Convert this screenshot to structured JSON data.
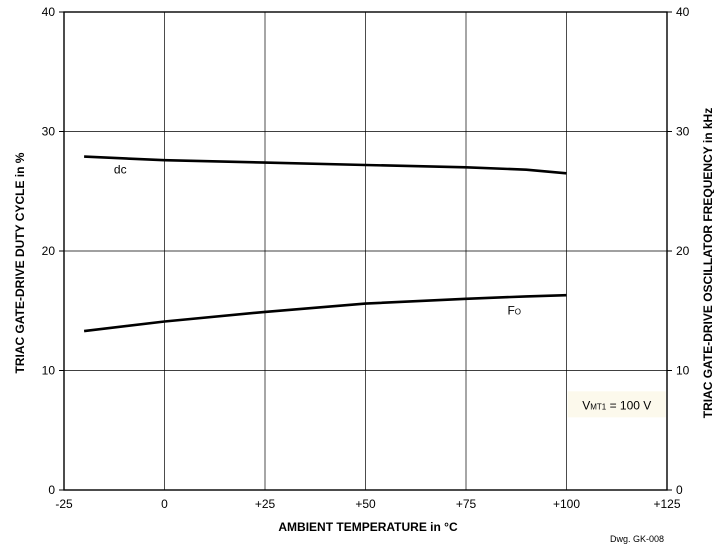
{
  "chart_data": {
    "type": "line",
    "xlabel": "AMBIENT TEMPERATURE in °C",
    "ylabel_left": "TRIAC GATE-DRIVE DUTY CYCLE in %",
    "ylabel_right": "TRIAC GATE-DRIVE OSCILLATOR FREQUENCY in kHz",
    "xlim": [
      -25,
      125
    ],
    "ylim": [
      0,
      40
    ],
    "x_ticks": [
      -25,
      0,
      25,
      50,
      75,
      100,
      125
    ],
    "x_tick_labels": [
      "-25",
      "0",
      "+25",
      "+50",
      "+75",
      "+100",
      "+125"
    ],
    "y_ticks": [
      0,
      10,
      20,
      30,
      40
    ],
    "y_tick_labels": [
      "0",
      "10",
      "20",
      "30",
      "40"
    ],
    "grid": true,
    "series": [
      {
        "name": "dc",
        "x": [
          -20,
          0,
          25,
          50,
          75,
          90,
          100
        ],
        "y": [
          27.9,
          27.6,
          27.4,
          27.2,
          27.0,
          26.8,
          26.5
        ]
      },
      {
        "name": "Fo",
        "x": [
          -20,
          0,
          25,
          50,
          75,
          90,
          100
        ],
        "y": [
          13.3,
          14.1,
          14.9,
          15.6,
          16.0,
          16.2,
          16.3
        ]
      }
    ],
    "annotation": {
      "main": "V",
      "subscript": "MT1",
      "rest": " = 100 V",
      "x": 112.5,
      "y": 7.0,
      "background": "#fcf9ec"
    },
    "series_label_points": {
      "dc": [
        -11,
        26.5
      ],
      "Fo": [
        87,
        14.7
      ]
    },
    "footer": "Dwg. GK-008"
  }
}
